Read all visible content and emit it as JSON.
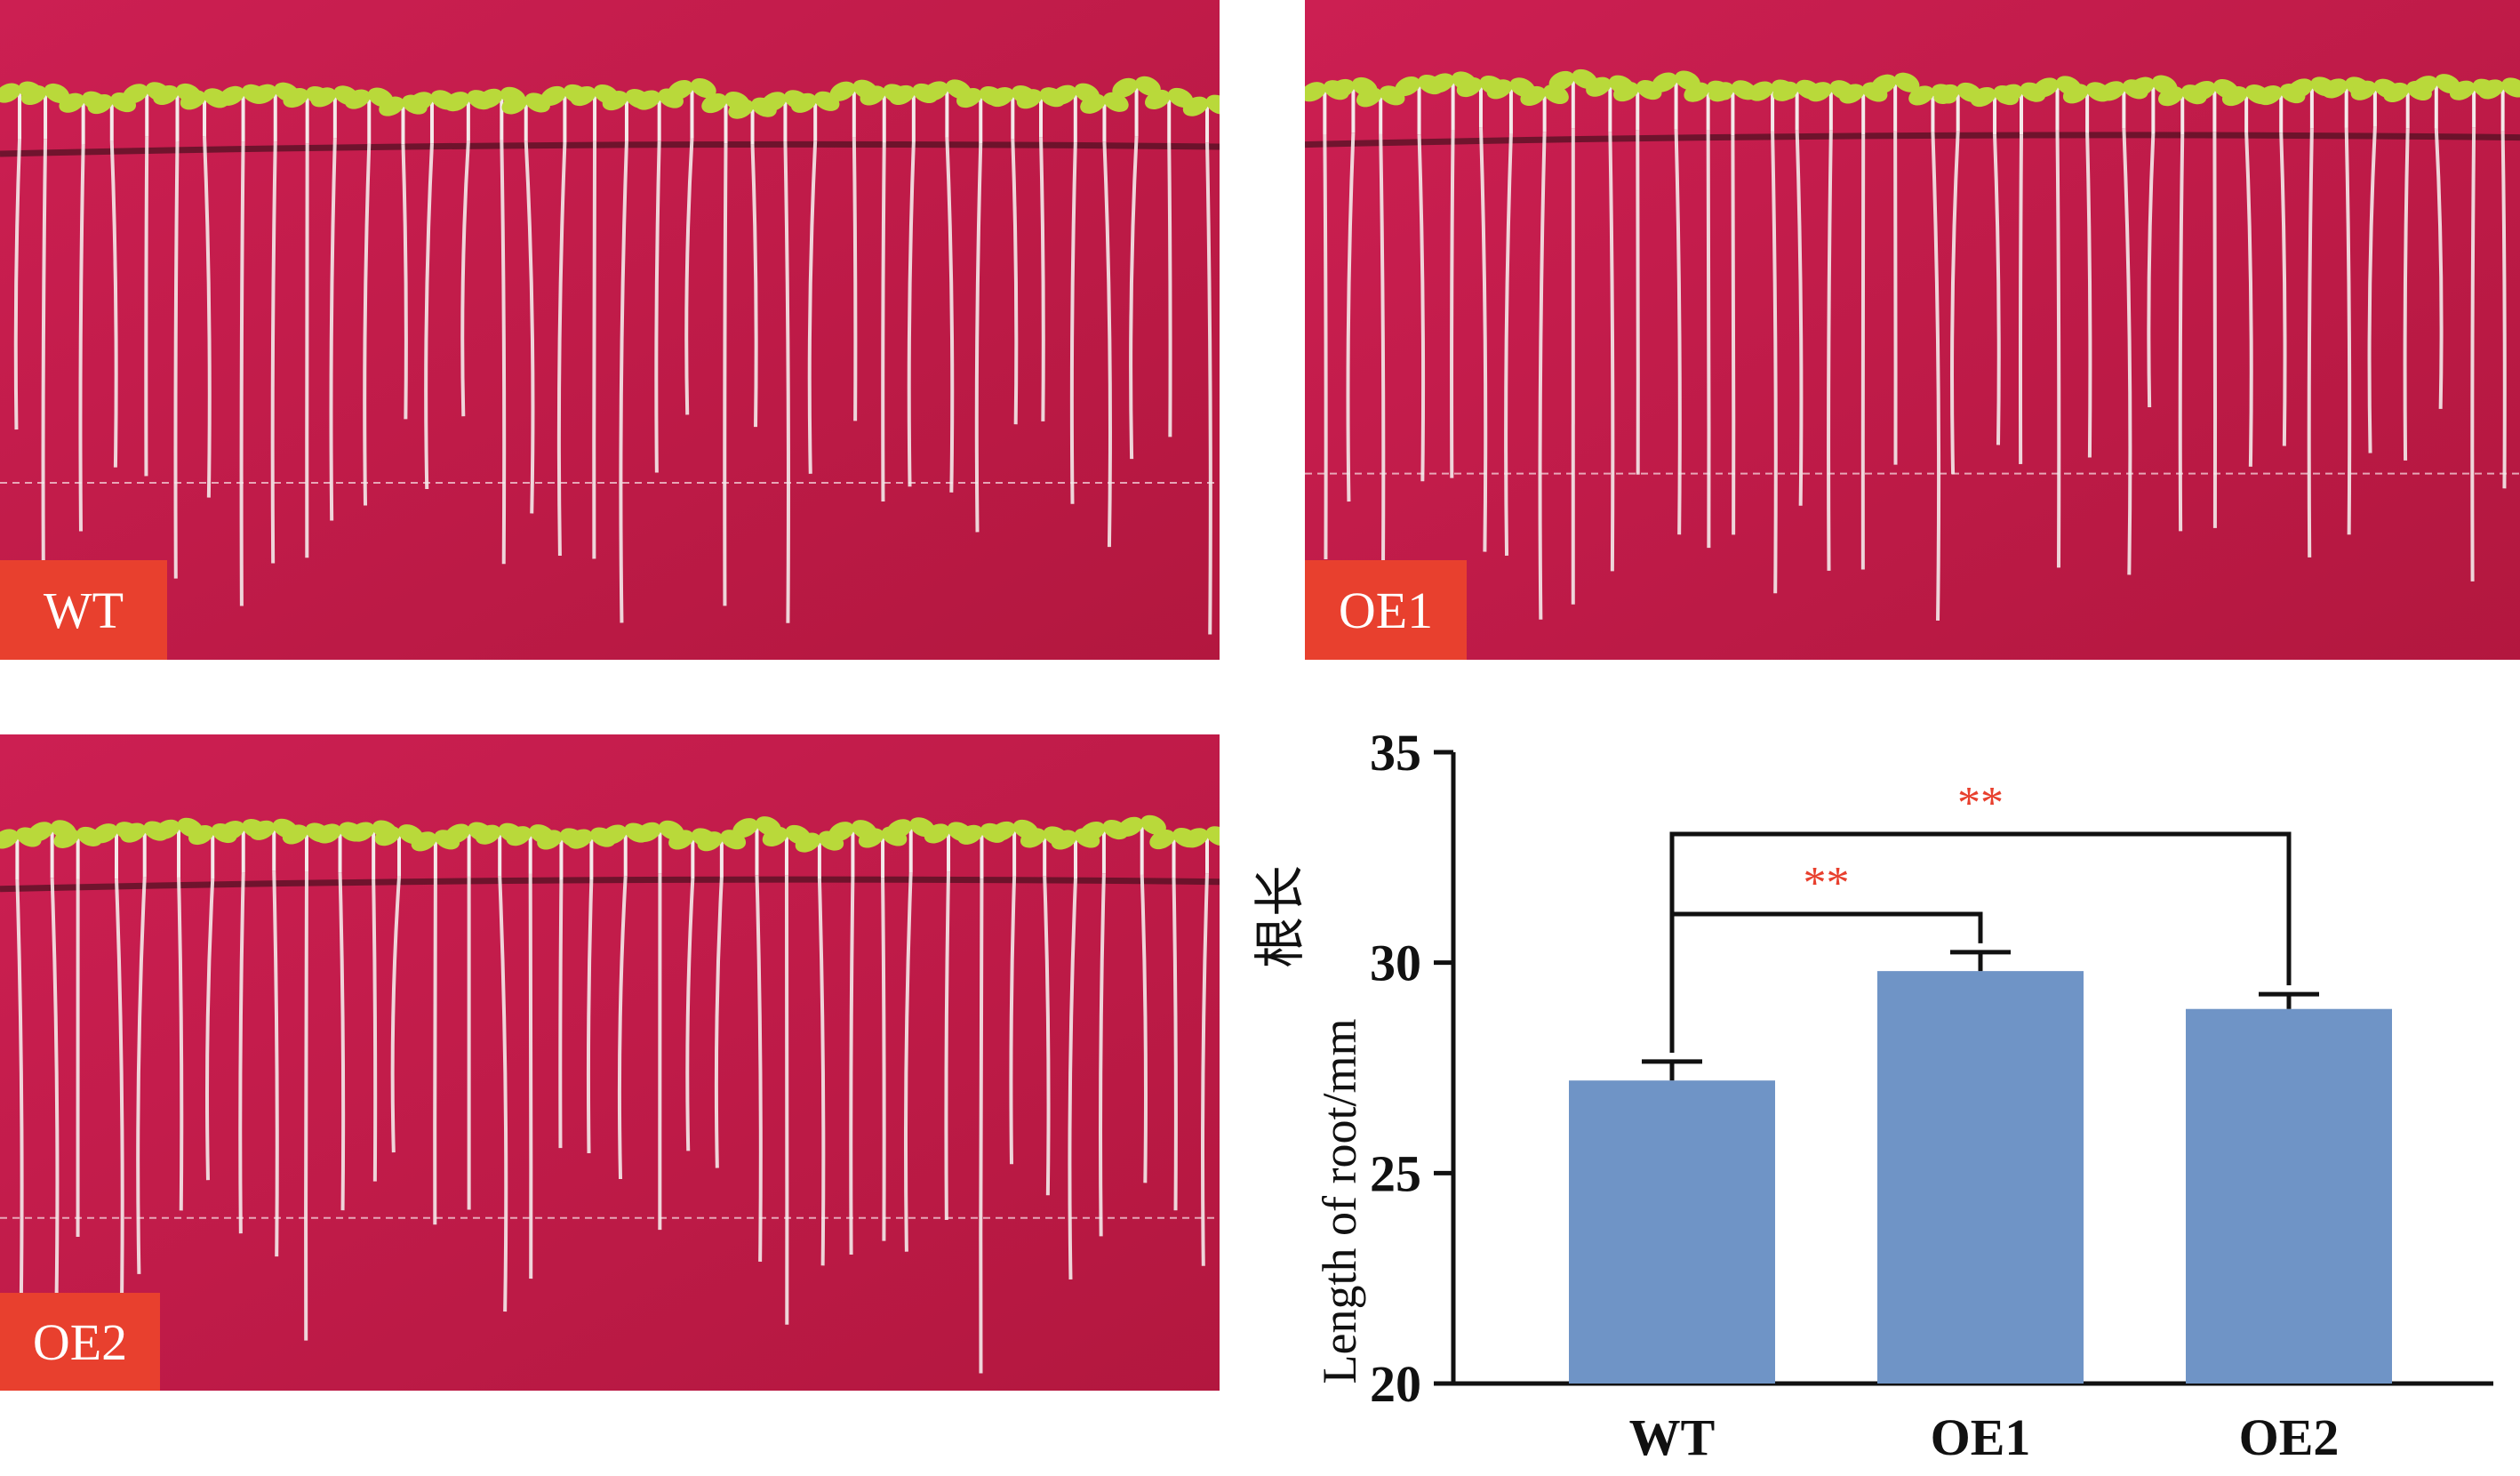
{
  "panels": [
    {
      "id": "p-wt",
      "label": "WT"
    },
    {
      "id": "p-oe1",
      "label": "OE1"
    },
    {
      "id": "p-oe2",
      "label": "OE2"
    }
  ],
  "colors": {
    "plate": "#cc1f52",
    "plate_dark": "#b3173f",
    "leaf": "#b9d93a",
    "root": "#f4eaea",
    "label_bg": "#e8402e",
    "bar": "#6f94c6",
    "significance": "#e8402e"
  },
  "chart_data": {
    "type": "bar",
    "categories": [
      "WT",
      "OE1",
      "OE2"
    ],
    "values": [
      27.2,
      29.8,
      28.9
    ],
    "errors": [
      0.45,
      0.45,
      0.35
    ],
    "ylabel_cn": "根长",
    "ylabel": "Length of root/mm",
    "ylim": [
      20,
      35
    ],
    "yticks": [
      20,
      25,
      30,
      35
    ],
    "significance": [
      {
        "from": "WT",
        "to": "OE1",
        "label": "**"
      },
      {
        "from": "WT",
        "to": "OE2",
        "label": "**"
      }
    ]
  }
}
